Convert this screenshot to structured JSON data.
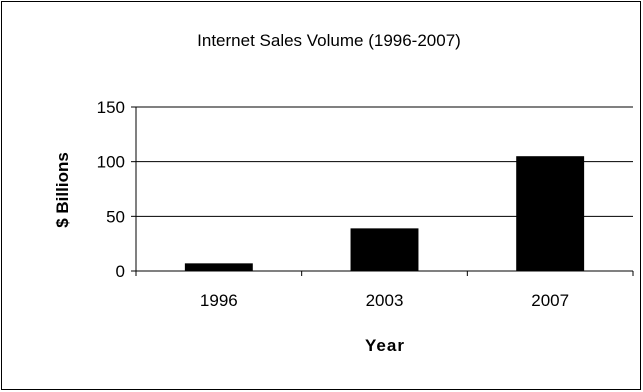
{
  "chart_data": {
    "type": "bar",
    "title": "Internet Sales Volume (1996-2007)",
    "xlabel": "Year",
    "ylabel": "$ Billions",
    "categories": [
      "1996",
      "2003",
      "2007"
    ],
    "values": [
      7,
      39,
      105
    ],
    "ylim": [
      0,
      150
    ],
    "yticks": [
      0,
      50,
      100,
      150
    ],
    "ytick_labels": [
      "0",
      "50",
      "100",
      "150"
    ],
    "grid": true,
    "legend": "none",
    "bar_color": "#000000"
  }
}
